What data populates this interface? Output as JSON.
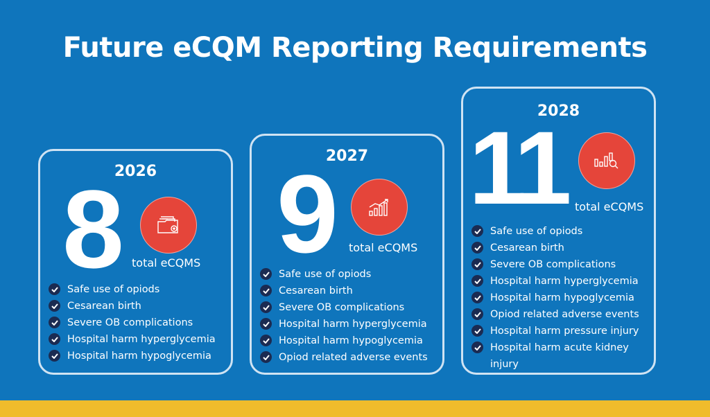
{
  "title": "Future eCQM Reporting Requirements",
  "colors": {
    "background": "#0f75bc",
    "accent": "#e5453a",
    "band": "#f0bc2c",
    "check": "#1b2b52"
  },
  "cards": [
    {
      "year": "2026",
      "count": "8",
      "unit": "total eCQMS",
      "icon": "folder-icon",
      "items": [
        "Safe use of opiods",
        "Cesarean birth",
        "Severe OB complications",
        "Hospital harm hyperglycemia",
        "Hospital harm hypoglycemia"
      ]
    },
    {
      "year": "2027",
      "count": "9",
      "unit": "total eCQMS",
      "icon": "growth-chart-icon",
      "items": [
        "Safe use of opiods",
        "Cesarean birth",
        "Severe OB complications",
        "Hospital harm hyperglycemia",
        "Hospital harm hypoglycemia",
        "Opiod related adverse events"
      ]
    },
    {
      "year": "2028",
      "count": "11",
      "unit": "total eCQMS",
      "icon": "chart-search-icon",
      "items": [
        "Safe use of opiods",
        "Cesarean birth",
        "Severe OB complications",
        "Hospital harm hyperglycemia",
        "Hospital harm hypoglycemia",
        "Opiod related adverse events",
        "Hospital harm pressure injury",
        "Hospital harm acute kidney injury"
      ]
    }
  ]
}
